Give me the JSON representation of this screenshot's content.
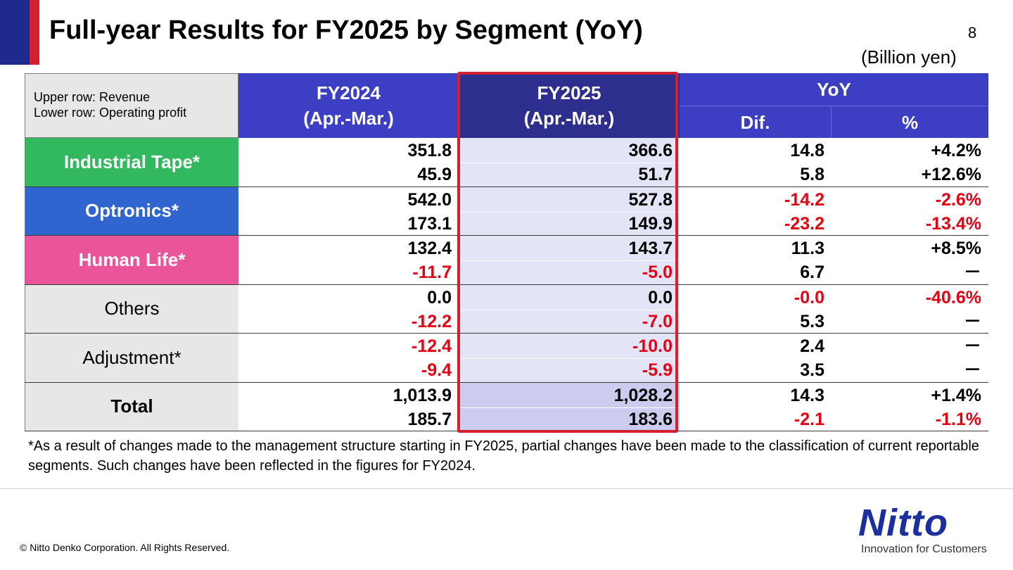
{
  "header": {
    "title": "Full-year Results for FY2025 by Segment (YoY)",
    "page_number": "8",
    "unit": "(Billion yen)"
  },
  "table": {
    "note_line1": "Upper row: Revenue",
    "note_line2": "Lower row: Operating profit",
    "col_fy2024": [
      "FY2024",
      "(Apr.-Mar.)"
    ],
    "col_fy2025": [
      "FY2025",
      "(Apr.-Mar.)"
    ],
    "col_yoy": "YoY",
    "col_dif": "Dif.",
    "col_pct": "%",
    "rows": [
      {
        "segment": "Industrial Tape*",
        "bg": "#32b85e",
        "fg": "#ffffff",
        "bold": true,
        "revenue": [
          "351.8",
          "366.6",
          "14.8",
          "+4.2%"
        ],
        "profit": [
          "45.9",
          "51.7",
          "5.8",
          "+12.6%"
        ]
      },
      {
        "segment": "Optronics*",
        "bg": "#3064cf",
        "fg": "#ffffff",
        "bold": true,
        "revenue": [
          "542.0",
          "527.8",
          "-14.2",
          "-2.6%"
        ],
        "profit": [
          "173.1",
          "149.9",
          "-23.2",
          "-13.4%"
        ]
      },
      {
        "segment": "Human Life*",
        "bg": "#ea5499",
        "fg": "#ffffff",
        "bold": true,
        "revenue": [
          "132.4",
          "143.7",
          "11.3",
          "+8.5%"
        ],
        "profit": [
          "-11.7",
          "-5.0",
          "6.7",
          "－"
        ]
      },
      {
        "segment": "Others",
        "bg": "#e7e7e7",
        "fg": "#000000",
        "bold": false,
        "revenue": [
          "0.0",
          "0.0",
          "-0.0",
          "-40.6%"
        ],
        "profit": [
          "-12.2",
          "-7.0",
          "5.3",
          "－"
        ]
      },
      {
        "segment": "Adjustment*",
        "bg": "#e7e7e7",
        "fg": "#000000",
        "bold": false,
        "revenue": [
          "-12.4",
          "-10.0",
          "2.4",
          "－"
        ],
        "profit": [
          "-9.4",
          "-5.9",
          "3.5",
          "－"
        ]
      },
      {
        "segment": "Total",
        "bg": "#e7e7e7",
        "fg": "#000000",
        "bold": true,
        "revenue": [
          "1,013.9",
          "1,028.2",
          "14.3",
          "+1.4%"
        ],
        "profit": [
          "185.7",
          "183.6",
          "-2.1",
          "-1.1%"
        ]
      }
    ]
  },
  "footnote": "*As a result of changes made to the management structure starting in FY2025, partial changes have been made to the classification of current reportable segments. Such changes have been reflected in the figures for FY2024.",
  "footer": {
    "copyright": "© Nitto Denko Corporation. All Rights Reserved.",
    "logo_text": "Nitto",
    "logo_tagline": "Innovation for Customers"
  },
  "colors": {
    "accent_blue": "#1e2a8e",
    "accent_red": "#d3202e",
    "header_blue": "#3c3fc3",
    "header_dark": "#2d2e8e",
    "negative": "#e60012"
  }
}
